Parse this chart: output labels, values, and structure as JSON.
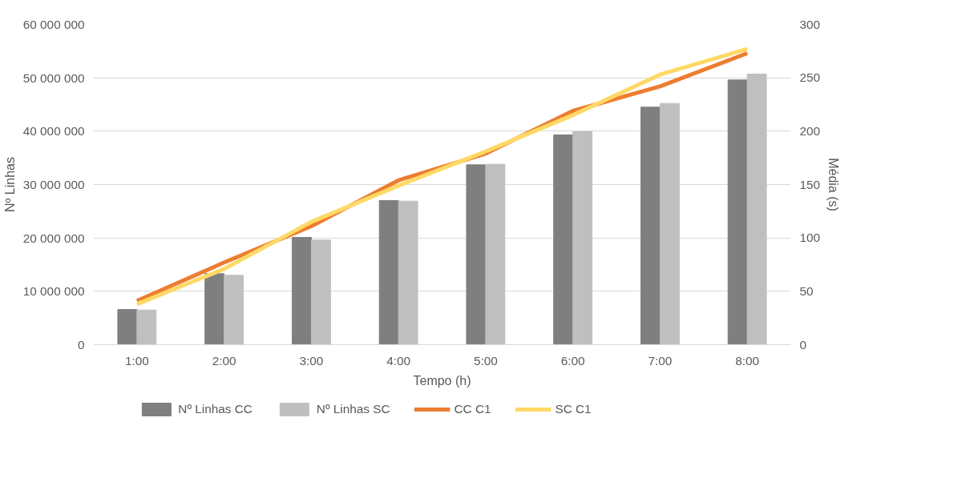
{
  "chart_data": {
    "type": "bar",
    "xlabel": "Tempo (h)",
    "ylabel": "Nº Linhas",
    "y2label": "Média (s)",
    "categories": [
      "1:00",
      "2:00",
      "3:00",
      "4:00",
      "5:00",
      "6:00",
      "7:00",
      "8:00"
    ],
    "series": [
      {
        "name": "Nº Linhas CC",
        "color": "#7f7f7f",
        "values": [
          6600000,
          13300000,
          20100000,
          27000000,
          33700000,
          39300000,
          44500000,
          49600000
        ]
      },
      {
        "name": "Nº Linhas SC",
        "color": "#bfbfbf",
        "values": [
          6500000,
          13000000,
          19600000,
          26900000,
          33800000,
          39900000,
          45200000,
          50700000
        ]
      },
      {
        "name": "CC C1",
        "type": "line",
        "axis": "y2",
        "color": "#ed7d31",
        "values": [
          41,
          77,
          111,
          154,
          179,
          219,
          242,
          273
        ]
      },
      {
        "name": "SC C1",
        "type": "line",
        "axis": "y2",
        "color": "#ffd966",
        "values": [
          38,
          71,
          115,
          149,
          181,
          215,
          253,
          277
        ]
      }
    ],
    "ylim": [
      0,
      60000000
    ],
    "yticks": [
      {
        "value": 0,
        "label": "0"
      },
      {
        "value": 10000000,
        "label": "10 000 000"
      },
      {
        "value": 20000000,
        "label": "20 000 000"
      },
      {
        "value": 30000000,
        "label": "30 000 000"
      },
      {
        "value": 40000000,
        "label": "40 000 000"
      },
      {
        "value": 50000000,
        "label": "50 000 000"
      },
      {
        "value": 60000000,
        "label": "60 000 000"
      }
    ],
    "y2lim": [
      0,
      300
    ],
    "y2ticks": [
      0,
      50,
      100,
      150,
      200,
      250,
      300
    ],
    "grid": "y",
    "legend": "bottom",
    "marker": "none",
    "line_style": "solid"
  }
}
